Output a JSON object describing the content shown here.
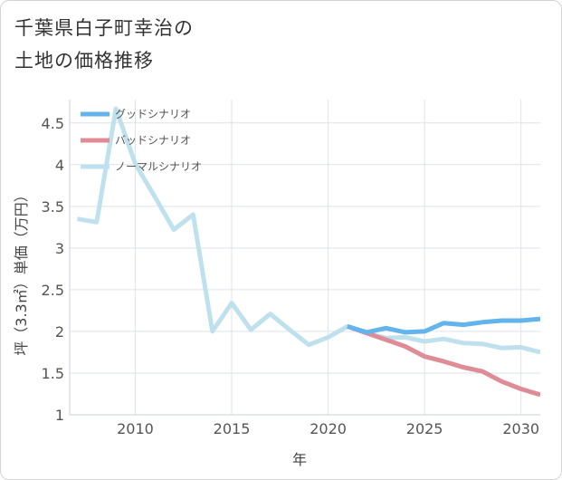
{
  "chart_data": {
    "type": "line",
    "title_lines": [
      "千葉県白子町幸治の",
      "土地の価格推移"
    ],
    "xlabel": "年",
    "ylabel": "坪（3.3㎡）単価（万円）",
    "xlim": [
      2006.6,
      2031.0
    ],
    "ylim": [
      1.0,
      4.78
    ],
    "x_ticks": [
      2010,
      2015,
      2020,
      2025,
      2030
    ],
    "y_ticks": [
      1,
      1.5,
      2,
      2.5,
      3,
      3.5,
      4,
      4.5
    ],
    "grid": true,
    "legend_position": "top-left",
    "series": [
      {
        "name": "グッドシナリオ",
        "color": "#63b3ed",
        "points": [
          [
            2021,
            2.06
          ],
          [
            2022,
            1.99
          ],
          [
            2023,
            2.04
          ],
          [
            2024,
            1.99
          ],
          [
            2025,
            2.0
          ],
          [
            2026,
            2.1
          ],
          [
            2027,
            2.08
          ],
          [
            2028,
            2.11
          ],
          [
            2029,
            2.13
          ],
          [
            2030,
            2.13
          ],
          [
            2031,
            2.15
          ]
        ]
      },
      {
        "name": "バッドシナリオ",
        "color": "#e08c96",
        "points": [
          [
            2021,
            2.06
          ],
          [
            2022,
            1.98
          ],
          [
            2023,
            1.9
          ],
          [
            2024,
            1.82
          ],
          [
            2025,
            1.7
          ],
          [
            2026,
            1.64
          ],
          [
            2027,
            1.57
          ],
          [
            2028,
            1.52
          ],
          [
            2029,
            1.4
          ],
          [
            2030,
            1.31
          ],
          [
            2031,
            1.24
          ]
        ]
      },
      {
        "name": "ノーマルシナリオ",
        "color": "#bfe1ee",
        "points": [
          [
            2007,
            3.35
          ],
          [
            2008,
            3.31
          ],
          [
            2009,
            4.67
          ],
          [
            2010,
            4.01
          ],
          [
            2011,
            3.62
          ],
          [
            2012,
            3.22
          ],
          [
            2013,
            3.4
          ],
          [
            2014,
            2.0
          ],
          [
            2015,
            2.34
          ],
          [
            2016,
            2.02
          ],
          [
            2017,
            2.21
          ],
          [
            2018,
            2.02
          ],
          [
            2019,
            1.84
          ],
          [
            2020,
            1.93
          ],
          [
            2021,
            2.06
          ],
          [
            2022,
            1.98
          ],
          [
            2023,
            1.92
          ],
          [
            2024,
            1.93
          ],
          [
            2025,
            1.88
          ],
          [
            2026,
            1.91
          ],
          [
            2027,
            1.86
          ],
          [
            2028,
            1.85
          ],
          [
            2029,
            1.8
          ],
          [
            2030,
            1.81
          ],
          [
            2031,
            1.75
          ]
        ]
      }
    ]
  }
}
